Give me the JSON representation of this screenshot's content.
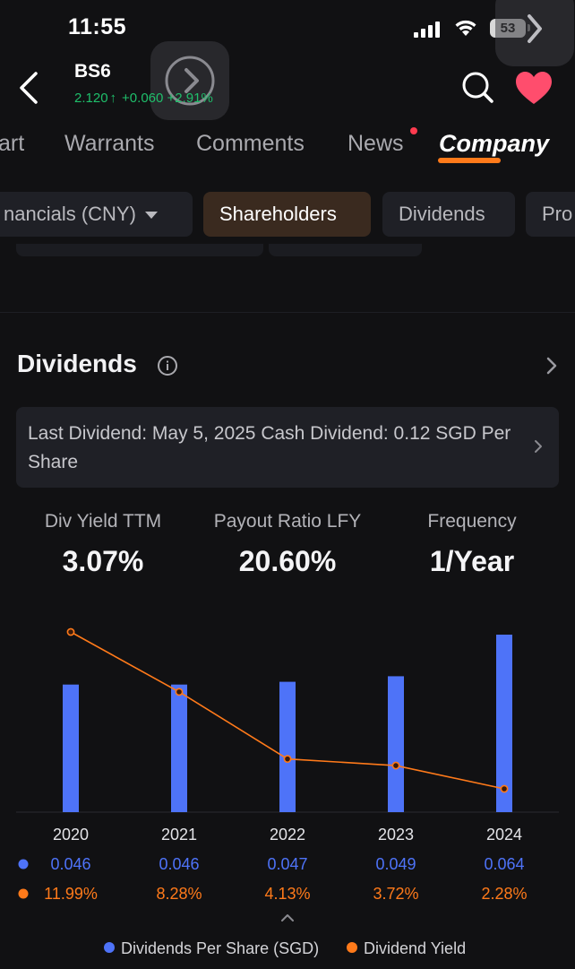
{
  "status_bar": {
    "time": "11:55",
    "battery": "53"
  },
  "header": {
    "ticker": "BS6",
    "price": "2.120",
    "change": "+0.060",
    "change_pct": "+2.91%",
    "up_arrow": "↑"
  },
  "tabs": [
    {
      "label": "art"
    },
    {
      "label": "Warrants"
    },
    {
      "label": "Comments"
    },
    {
      "label": "News"
    },
    {
      "label": "Company"
    }
  ],
  "chips": [
    {
      "label": "nancials (CNY)"
    },
    {
      "label": "Shareholders"
    },
    {
      "label": "Dividends"
    },
    {
      "label": "Pro"
    }
  ],
  "dividends": {
    "title": "Dividends",
    "last_dividend": "Last Dividend: May 5, 2025 Cash Dividend: 0.12 SGD Per Share",
    "metrics": [
      {
        "label": "Div Yield TTM",
        "value": "3.07%"
      },
      {
        "label": "Payout Ratio LFY",
        "value": "20.60%"
      },
      {
        "label": "Frequency",
        "value": "1/Year"
      }
    ]
  },
  "colors": {
    "accent": "#ff7a1a",
    "up": "#1fbf6b",
    "bar": "#4e73f8",
    "line": "#ff7a1a"
  },
  "chart_data": {
    "type": "bar",
    "categories": [
      "2020",
      "2021",
      "2022",
      "2023",
      "2024"
    ],
    "series": [
      {
        "name": "Dividends Per Share (SGD)",
        "type": "bar",
        "values": [
          0.046,
          0.046,
          0.047,
          0.049,
          0.064
        ],
        "labels": [
          "0.046",
          "0.046",
          "0.047",
          "0.049",
          "0.064"
        ]
      },
      {
        "name": "Dividend Yield",
        "type": "line",
        "values": [
          11.99,
          8.28,
          4.13,
          3.72,
          2.28
        ],
        "labels": [
          "11.99%",
          "8.28%",
          "4.13%",
          "3.72%",
          "2.28%"
        ]
      }
    ],
    "legend": "bottom",
    "grid": false
  }
}
